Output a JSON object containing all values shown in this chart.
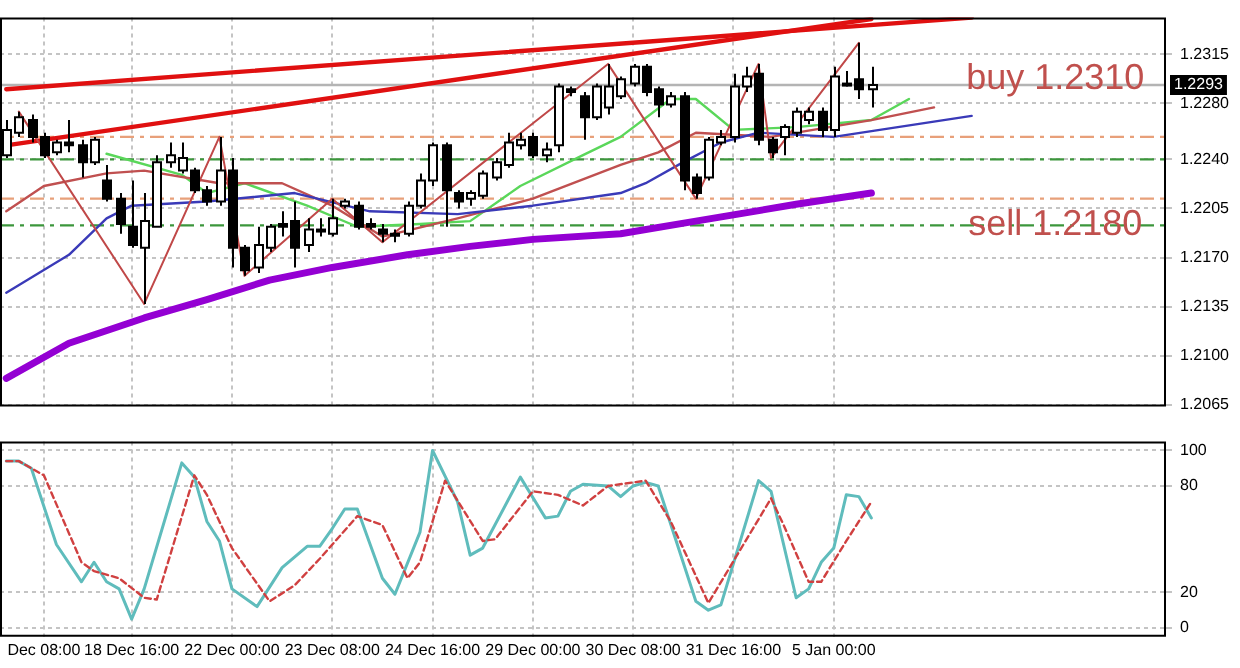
{
  "chart_data": [
    {
      "type": "candlestick",
      "tick_labels": "y",
      "grid": true,
      "categories": [
        null,
        null,
        null,
        null,
        null,
        null,
        null,
        null,
        null,
        null,
        null,
        null,
        null,
        null,
        null,
        null,
        null,
        null,
        null,
        null,
        null,
        null,
        null,
        null,
        null,
        null,
        null,
        null,
        null,
        null,
        null,
        null,
        null,
        null,
        null,
        null,
        null,
        null,
        null,
        null,
        null,
        null,
        null,
        null,
        null,
        null,
        null,
        null,
        null,
        null,
        null,
        null,
        null,
        null,
        null,
        null,
        null,
        null,
        null,
        null,
        null,
        null,
        null,
        null,
        null,
        null,
        null,
        null,
        null,
        null,
        null,
        null,
        null,
        null,
        null,
        null,
        null,
        null,
        null,
        null,
        null,
        null,
        null,
        null,
        null,
        null,
        null,
        null,
        null,
        null,
        null,
        null,
        null
      ],
      "ylim": [
        1.2064,
        1.2341
      ],
      "yticks": [
        {
          "value": 1.2065,
          "label": "1.2065"
        },
        {
          "value": 1.21,
          "label": "1.2100"
        },
        {
          "value": 1.2135,
          "label": "1.2135"
        },
        {
          "value": 1.217,
          "label": "1.2170"
        },
        {
          "value": 1.2205,
          "label": "1.2205"
        },
        {
          "value": 1.224,
          "label": "1.2240"
        },
        {
          "value": 1.228,
          "label": "1.2280"
        },
        {
          "value": 1.2315,
          "label": "1.2315"
        }
      ],
      "ohlc": [
        [
          1.2243,
          1.2268,
          1.2241,
          1.2261
        ],
        [
          1.2259,
          1.2274,
          1.2256,
          1.227
        ],
        [
          1.2268,
          1.2272,
          1.2252,
          1.2256
        ],
        [
          1.2256,
          1.2259,
          1.2241,
          1.2243
        ],
        [
          1.2245,
          1.2254,
          1.2243,
          1.2252
        ],
        [
          1.2252,
          1.2268,
          1.2245,
          1.225
        ],
        [
          1.225,
          1.2254,
          1.2227,
          1.2238
        ],
        [
          1.2238,
          1.2256,
          1.2236,
          1.2254
        ],
        [
          1.2225,
          1.2236,
          1.221,
          1.2212
        ],
        [
          1.2212,
          1.2216,
          1.2187,
          1.2194
        ],
        [
          1.2192,
          1.2225,
          1.2177,
          1.2179
        ],
        [
          1.2177,
          1.2216,
          1.2137,
          1.2196
        ],
        [
          1.2192,
          1.2243,
          1.2192,
          1.2238
        ],
        [
          1.2238,
          1.2252,
          1.2234,
          1.2243
        ],
        [
          1.2232,
          1.2252,
          1.223,
          1.2241
        ],
        [
          1.2232,
          1.2234,
          1.2216,
          1.2218
        ],
        [
          1.2218,
          1.2221,
          1.2207,
          1.221
        ],
        [
          1.221,
          1.2256,
          1.2207,
          1.2232
        ],
        [
          1.2232,
          1.2241,
          1.2163,
          1.2177
        ],
        [
          1.2177,
          1.2179,
          1.2157,
          1.2161
        ],
        [
          1.2163,
          1.2192,
          1.2159,
          1.2179
        ],
        [
          1.2177,
          1.2194,
          1.2174,
          1.2192
        ],
        [
          1.2194,
          1.2203,
          1.2185,
          1.2192
        ],
        [
          1.2196,
          1.221,
          1.2163,
          1.2177
        ],
        [
          1.2179,
          1.2198,
          1.2174,
          1.219
        ],
        [
          1.219,
          1.2198,
          1.2185,
          1.219
        ],
        [
          1.2187,
          1.2212,
          1.2185,
          1.2198
        ],
        [
          1.2207,
          1.2212,
          1.2205,
          1.221
        ],
        [
          1.2207,
          1.221,
          1.219,
          1.2192
        ],
        [
          1.2194,
          1.2198,
          1.219,
          1.2192
        ],
        [
          1.219,
          1.2194,
          1.2181,
          1.2187
        ],
        [
          1.2187,
          1.219,
          1.2181,
          1.2186
        ],
        [
          1.2187,
          1.221,
          1.2185,
          1.2207
        ],
        [
          1.2207,
          1.223,
          1.2205,
          1.2225
        ],
        [
          1.2225,
          1.2252,
          1.2221,
          1.225
        ],
        [
          1.225,
          1.2252,
          1.2192,
          1.2218
        ],
        [
          1.2216,
          1.2218,
          1.2205,
          1.221
        ],
        [
          1.2212,
          1.2218,
          1.2207,
          1.2216
        ],
        [
          1.2214,
          1.2232,
          1.2212,
          1.223
        ],
        [
          1.2227,
          1.2241,
          1.2225,
          1.2238
        ],
        [
          1.2236,
          1.2259,
          1.2234,
          1.2252
        ],
        [
          1.225,
          1.2259,
          1.2247,
          1.2254
        ],
        [
          1.2256,
          1.2259,
          1.2241,
          1.2243
        ],
        [
          1.2243,
          1.2252,
          1.2238,
          1.2247
        ],
        [
          1.225,
          1.2294,
          1.2245,
          1.2292
        ],
        [
          1.229,
          1.2292,
          1.2285,
          1.2288
        ],
        [
          1.2285,
          1.2288,
          1.2254,
          1.227
        ],
        [
          1.227,
          1.2294,
          1.2268,
          1.2292
        ],
        [
          1.2277,
          1.2308,
          1.2272,
          1.2292
        ],
        [
          1.2285,
          1.2299,
          1.2283,
          1.2297
        ],
        [
          1.2294,
          1.2308,
          1.2292,
          1.2306
        ],
        [
          1.2306,
          1.2308,
          1.2285,
          1.2288
        ],
        [
          1.229,
          1.2292,
          1.227,
          1.2279
        ],
        [
          1.2279,
          1.2288,
          1.2277,
          1.2285
        ],
        [
          1.2285,
          1.2288,
          1.2218,
          1.2225
        ],
        [
          1.2227,
          1.223,
          1.2212,
          1.2216
        ],
        [
          1.2227,
          1.2256,
          1.2225,
          1.2254
        ],
        [
          1.2252,
          1.2261,
          1.225,
          1.2256
        ],
        [
          1.2256,
          1.2301,
          1.2252,
          1.2292
        ],
        [
          1.2292,
          1.2306,
          1.2288,
          1.2299
        ],
        [
          1.2301,
          1.2308,
          1.225,
          1.2254
        ],
        [
          1.2254,
          1.2256,
          1.2241,
          1.2245
        ],
        [
          1.2256,
          1.2265,
          1.2243,
          1.2263
        ],
        [
          1.2259,
          1.2277,
          1.2256,
          1.2274
        ],
        [
          1.2268,
          1.2277,
          1.2265,
          1.2274
        ],
        [
          1.2274,
          1.2277,
          1.2256,
          1.2261
        ],
        [
          1.2261,
          1.2306,
          1.2256,
          1.2299
        ],
        [
          1.2294,
          1.2303,
          1.2292,
          1.2294
        ],
        [
          1.2297,
          1.2323,
          1.2283,
          1.229
        ],
        [
          1.229,
          1.2306,
          1.2277,
          1.2293
        ],
        null,
        null,
        null,
        null,
        null,
        null,
        null,
        null,
        null,
        null,
        null,
        null,
        null,
        null,
        null,
        null,
        null,
        null,
        null,
        null,
        null,
        null,
        null
      ],
      "series": [
        {
          "type": "line",
          "color": "#5ad75a",
          "values": [
            null,
            null,
            null,
            null,
            null,
            null,
            null,
            null,
            1.2244,
            null,
            null,
            null,
            null,
            null,
            1.2229,
            null,
            1.2216,
            null,
            null,
            1.2223,
            null,
            null,
            null,
            null,
            1.2207,
            null,
            null,
            null,
            1.2192,
            null,
            null,
            null,
            null,
            1.2194,
            null,
            null,
            null,
            1.2196,
            null,
            null,
            null,
            1.2221,
            null,
            null,
            null,
            null,
            1.2243,
            null,
            null,
            1.2256,
            null,
            null,
            null,
            1.2283,
            null,
            1.2283,
            null,
            null,
            1.2261,
            null,
            null,
            null,
            null,
            1.2263,
            null,
            null,
            null,
            null,
            null,
            1.2268,
            null,
            null,
            1.2283,
            null,
            null,
            null,
            null,
            null,
            null,
            null,
            null,
            null,
            null,
            null,
            null,
            null,
            null,
            null,
            null,
            null,
            null,
            null,
            null
          ]
        },
        {
          "type": "line",
          "color": "#c05050",
          "values": [
            1.2203,
            null,
            null,
            1.2221,
            null,
            null,
            null,
            null,
            1.223,
            null,
            null,
            1.2232,
            null,
            null,
            null,
            null,
            null,
            1.2223,
            null,
            null,
            null,
            null,
            1.2223,
            null,
            null,
            null,
            1.2207,
            null,
            null,
            null,
            1.2185,
            null,
            null,
            null,
            null,
            null,
            1.2198,
            null,
            null,
            null,
            null,
            null,
            1.2212,
            null,
            null,
            null,
            null,
            null,
            null,
            1.2236,
            null,
            null,
            1.2245,
            null,
            null,
            1.2259,
            null,
            null,
            null,
            null,
            null,
            1.2256,
            null,
            null,
            null,
            null,
            null,
            null,
            null,
            1.2268,
            null,
            null,
            null,
            null,
            1.2277,
            null,
            null,
            null,
            null,
            null,
            null,
            null,
            null,
            null,
            null,
            null,
            null,
            null,
            null,
            null,
            null,
            null,
            null
          ]
        },
        {
          "type": "line",
          "color": "#3a3ab8",
          "values": [
            1.2145,
            null,
            null,
            null,
            null,
            1.2172,
            null,
            null,
            1.2198,
            null,
            1.2207,
            null,
            null,
            null,
            null,
            null,
            1.221,
            null,
            null,
            null,
            null,
            null,
            null,
            1.2216,
            null,
            null,
            null,
            null,
            null,
            1.2203,
            null,
            null,
            null,
            null,
            null,
            null,
            1.2201,
            null,
            null,
            null,
            null,
            null,
            1.2207,
            null,
            null,
            null,
            null,
            null,
            null,
            1.2216,
            null,
            1.2223,
            null,
            null,
            1.2238,
            null,
            null,
            1.2252,
            null,
            null,
            1.2259,
            null,
            null,
            null,
            null,
            null,
            1.2256,
            null,
            null,
            null,
            null,
            null,
            null,
            null,
            null,
            null,
            null,
            1.2271,
            null,
            null,
            null,
            null,
            null,
            null,
            null,
            null,
            null,
            null,
            null,
            null,
            null,
            null,
            null
          ]
        },
        {
          "type": "line",
          "color": "#9400d3",
          "values": [
            1.2084,
            null,
            null,
            null,
            null,
            1.2109,
            null,
            null,
            null,
            null,
            null,
            1.2127,
            null,
            null,
            null,
            null,
            1.214,
            null,
            null,
            null,
            null,
            1.2154,
            null,
            null,
            null,
            null,
            1.2163,
            null,
            null,
            null,
            null,
            null,
            1.2172,
            null,
            null,
            null,
            null,
            1.2178,
            null,
            null,
            null,
            null,
            1.2183,
            null,
            null,
            null,
            null,
            null,
            null,
            1.2187,
            null,
            null,
            null,
            null,
            null,
            1.2196,
            null,
            null,
            null,
            null,
            null,
            null,
            null,
            1.2208,
            null,
            null,
            null,
            null,
            null,
            1.2216,
            null,
            null,
            null,
            null,
            null,
            null,
            null,
            null,
            null,
            null,
            null,
            null,
            null,
            null,
            null,
            null,
            null,
            null,
            null,
            null,
            null,
            null,
            null
          ]
        },
        {
          "type": "line",
          "color": "#e01010",
          "values": [
            1.229,
            null,
            null,
            null,
            null,
            null,
            null,
            null,
            null,
            null,
            null,
            null,
            null,
            null,
            null,
            null,
            null,
            null,
            null,
            null,
            null,
            null,
            null,
            null,
            null,
            null,
            null,
            null,
            null,
            null,
            null,
            null,
            null,
            null,
            null,
            null,
            null,
            null,
            null,
            null,
            null,
            null,
            null,
            null,
            null,
            null,
            null,
            null,
            null,
            null,
            null,
            null,
            null,
            null,
            null,
            null,
            null,
            null,
            null,
            null,
            null,
            null,
            null,
            null,
            null,
            null,
            null,
            null,
            null,
            null,
            null,
            null,
            null,
            null,
            null,
            null,
            null,
            1.2341,
            null,
            null,
            null,
            null,
            null,
            null,
            null,
            null,
            null,
            null,
            null,
            null,
            null,
            null,
            null
          ]
        },
        {
          "type": "line",
          "color": "#e01010",
          "values": [
            1.225,
            null,
            null,
            null,
            null,
            null,
            null,
            null,
            null,
            null,
            null,
            null,
            null,
            null,
            null,
            null,
            null,
            null,
            null,
            null,
            null,
            null,
            null,
            null,
            null,
            null,
            null,
            null,
            null,
            null,
            null,
            null,
            null,
            null,
            null,
            null,
            null,
            null,
            null,
            null,
            null,
            null,
            null,
            null,
            null,
            null,
            null,
            null,
            null,
            null,
            null,
            null,
            null,
            null,
            null,
            null,
            null,
            null,
            null,
            null,
            null,
            null,
            null,
            null,
            null,
            null,
            null,
            null,
            null,
            1.234,
            null,
            null,
            null,
            null,
            null,
            null,
            null,
            null,
            null,
            null,
            null,
            null,
            null,
            null,
            null,
            null,
            null,
            null,
            null,
            null,
            null,
            null,
            null
          ]
        },
        {
          "type": "line",
          "color": "#c04848",
          "values": [
            null,
            1.2274,
            null,
            null,
            null,
            null,
            null,
            null,
            null,
            null,
            null,
            1.2137,
            null,
            null,
            null,
            null,
            null,
            1.2256,
            null,
            1.2157,
            null,
            null,
            null,
            null,
            null,
            null,
            1.2212,
            null,
            null,
            null,
            1.2181,
            null,
            null,
            null,
            null,
            null,
            null,
            null,
            null,
            null,
            null,
            null,
            null,
            null,
            null,
            null,
            null,
            null,
            1.2308,
            null,
            null,
            null,
            null,
            null,
            null,
            1.2212,
            null,
            null,
            null,
            null,
            1.2308,
            1.2241,
            null,
            null,
            null,
            null,
            null,
            null,
            1.2323,
            null,
            null,
            null,
            null,
            null,
            null,
            null,
            null,
            null,
            null,
            null,
            null,
            null,
            null,
            null,
            null,
            null,
            null,
            null,
            null,
            null,
            null,
            null,
            null
          ]
        }
      ],
      "ref_lines": [
        {
          "axis": "y",
          "value": 1.2293,
          "label": "1.2293",
          "color": "#b4b4b4",
          "line_style": "solid"
        },
        {
          "axis": "y",
          "value": 1.2256,
          "color": "#e8a07a",
          "line_style": "dashed"
        },
        {
          "axis": "y",
          "value": 1.224,
          "color": "#3c963c",
          "line_style": "dashed"
        },
        {
          "axis": "y",
          "value": 1.2212,
          "color": "#e8a07a",
          "line_style": "dashed"
        },
        {
          "axis": "y",
          "value": 1.2193,
          "color": "#3c963c",
          "line_style": "dashed"
        }
      ],
      "annotations": [
        {
          "text": "buy 1.2310",
          "y": 1.2297
        },
        {
          "text": "sell 1.2180",
          "y": 1.2193
        }
      ]
    },
    {
      "type": "line",
      "grid": true,
      "categories": [
        null,
        null,
        null,
        "Dec 08:00",
        null,
        null,
        null,
        null,
        null,
        null,
        "18 Dec 16:00",
        null,
        null,
        null,
        null,
        null,
        null,
        null,
        "22 Dec 00:00",
        null,
        null,
        null,
        null,
        null,
        null,
        null,
        "23 Dec 08:00",
        null,
        null,
        null,
        null,
        null,
        null,
        null,
        "24 Dec 16:00",
        null,
        null,
        null,
        null,
        null,
        null,
        null,
        "29 Dec 00:00",
        null,
        null,
        null,
        null,
        null,
        null,
        null,
        "30 Dec 08:00",
        null,
        null,
        null,
        null,
        null,
        null,
        null,
        "31 Dec 16:00",
        null,
        null,
        null,
        null,
        null,
        null,
        null,
        "5 Jan 00:00",
        null,
        null,
        null,
        null,
        null,
        null,
        null,
        null,
        null,
        null,
        null,
        null,
        null,
        null,
        null,
        null,
        null,
        null,
        null,
        null,
        null,
        null,
        null,
        null,
        null,
        null
      ],
      "ylim": [
        -5,
        105
      ],
      "yticks": [
        0,
        20,
        80,
        100
      ],
      "series": [
        {
          "color": "#5fbcbc",
          "line_style": "solid",
          "values": [
            94,
            94,
            90,
            null,
            47,
            null,
            26,
            37,
            26,
            22,
            5,
            22,
            null,
            null,
            93,
            85,
            60,
            49,
            22,
            null,
            12,
            null,
            34,
            null,
            46,
            46,
            56,
            67,
            67,
            null,
            28,
            19,
            null,
            54,
            100,
            null,
            71,
            41,
            45,
            null,
            null,
            85,
            null,
            62,
            63,
            77,
            81,
            null,
            80,
            74,
            80,
            82,
            80,
            null,
            null,
            15,
            10,
            13,
            null,
            null,
            83,
            77,
            null,
            17,
            22,
            37,
            45,
            75,
            74,
            62,
            null,
            null,
            null,
            null,
            null,
            null,
            null,
            null,
            null,
            null,
            null,
            null,
            null,
            null,
            null,
            null,
            null,
            null,
            null,
            null,
            null,
            null,
            null
          ]
        },
        {
          "color": "#d04040",
          "line_style": "dotted",
          "values": [
            94,
            94,
            null,
            86,
            null,
            null,
            37,
            32,
            null,
            28,
            null,
            17,
            16,
            null,
            null,
            86,
            75,
            null,
            45,
            null,
            null,
            15,
            null,
            24,
            null,
            39,
            null,
            null,
            63,
            null,
            58,
            null,
            28,
            37,
            null,
            83,
            null,
            null,
            49,
            50,
            null,
            null,
            77,
            null,
            75,
            null,
            69,
            null,
            80,
            null,
            null,
            83,
            null,
            60,
            null,
            null,
            14,
            null,
            null,
            null,
            null,
            73,
            58,
            null,
            26,
            26,
            null,
            49,
            null,
            71,
            null,
            null,
            null,
            null,
            null,
            null,
            null,
            null,
            null,
            null,
            null,
            null,
            null,
            null,
            null,
            null,
            null,
            null,
            null,
            null,
            null,
            null,
            null
          ]
        }
      ]
    }
  ]
}
